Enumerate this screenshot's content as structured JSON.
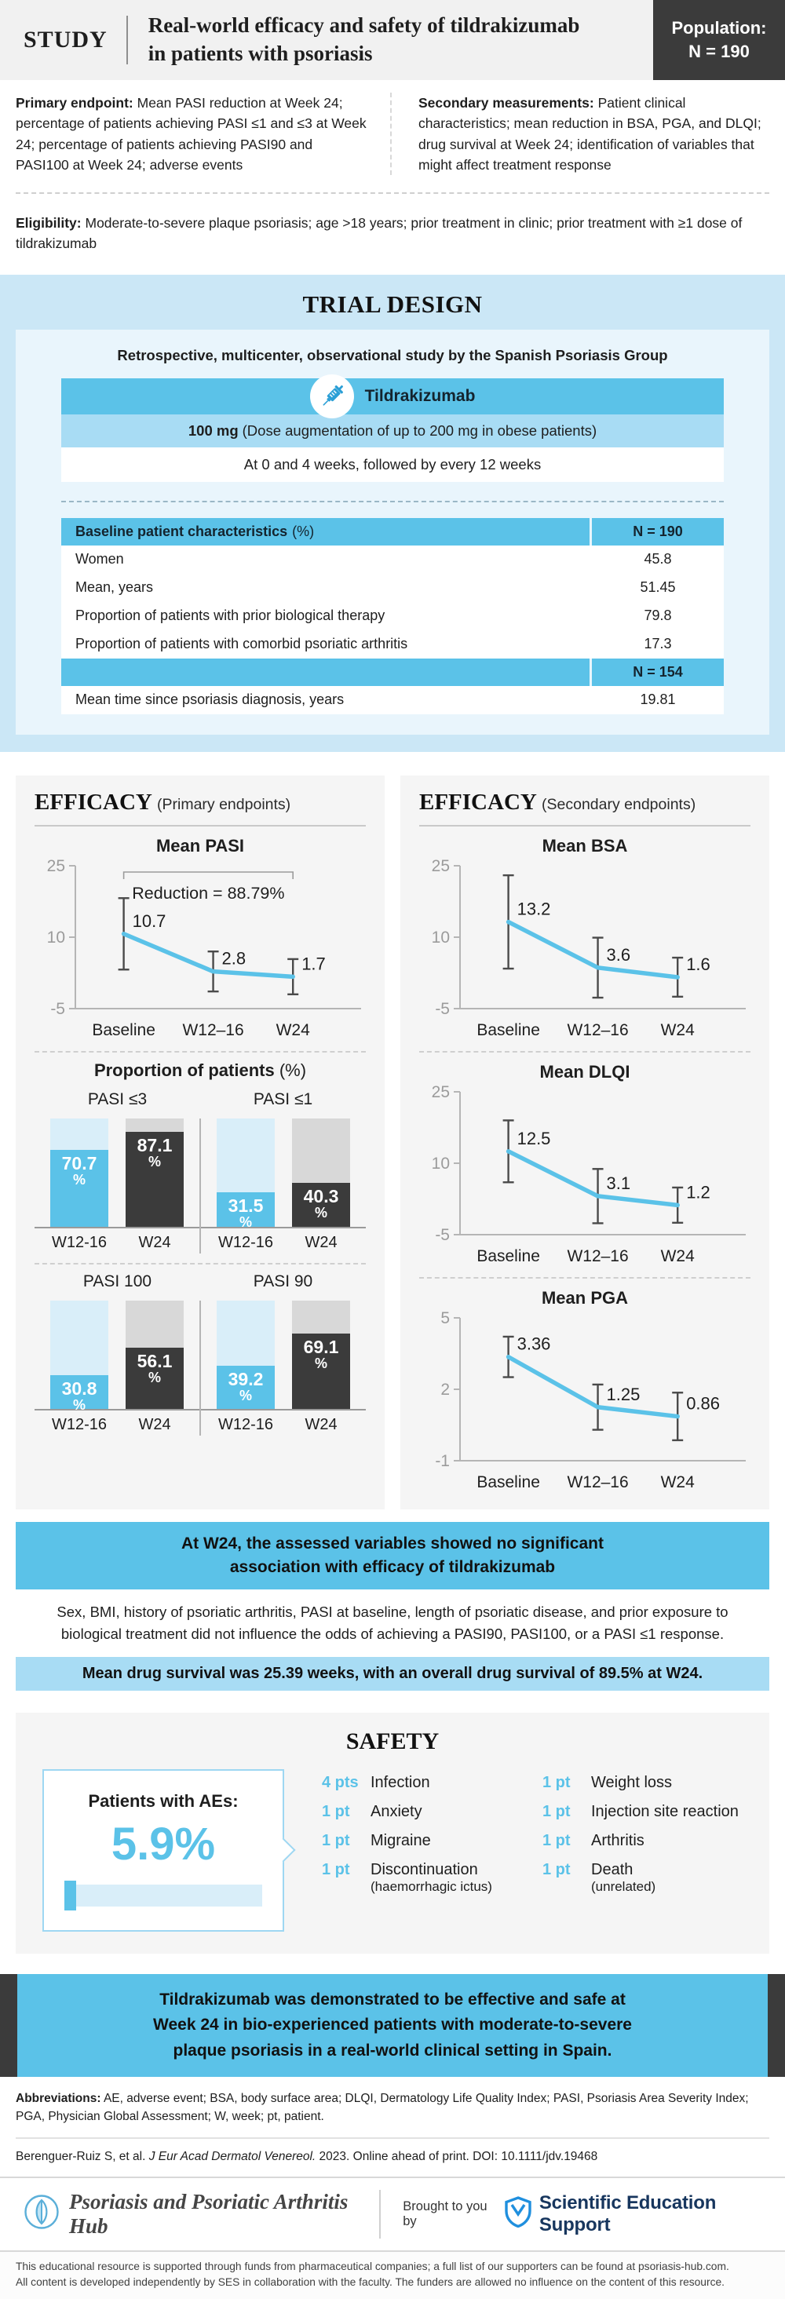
{
  "colors": {
    "accent": "#5BC2E8",
    "light_blue": "#A8DCF4",
    "pale_blue": "#D9EEF9",
    "panel": "#CBE7F6",
    "bar_gray": "#D8D8D8",
    "dark": "#3B3B3B"
  },
  "header": {
    "kicker": "STUDY",
    "title_line1": "Real-world efficacy and safety of tildrakizumab",
    "title_line2": "in patients with psoriasis",
    "population_line1": "Population:",
    "population_line2": "N = 190"
  },
  "endpoints": {
    "primary_label": "Primary endpoint:",
    "primary_text": " Mean PASI reduction at Week 24; percentage of patients achieving PASI ≤1 and ≤3 at Week 24; percentage of patients achieving PASI90 and PASI100 at Week 24; adverse events",
    "secondary_label": "Secondary measurements:",
    "secondary_text": " Patient clinical characteristics; mean reduction in BSA, PGA, and DLQI; drug survival at Week 24; identification of variables that might affect treatment response"
  },
  "eligibility": {
    "label": "Eligibility:",
    "text": " Moderate-to-severe plaque psoriasis; age >18 years; prior treatment in clinic; prior treatment with ≥1 dose of tildrakizumab"
  },
  "trial_design": {
    "title": "TRIAL DESIGN",
    "study_type": "Retrospective, multicenter, observational study by the Spanish Psoriasis Group",
    "drug_name": "Tildrakizumab",
    "dose_bold": "100 mg",
    "dose_rest": " (Dose augmentation of up to 200 mg in obese patients)",
    "schedule": "At 0 and 4 weeks, followed by every 12 weeks",
    "table": {
      "header_label": "Baseline patient characteristics",
      "header_unit": "(%)",
      "header_n": "N = 190",
      "rows": [
        {
          "label": "Women",
          "value": "45.8"
        },
        {
          "label": "Mean, years",
          "value": "51.45"
        },
        {
          "label": "Proportion of patients with prior biological therapy",
          "value": "79.8"
        },
        {
          "label": "Proportion of patients with comorbid psoriatic arthritis",
          "value": "17.3"
        }
      ],
      "subheader_n": "N = 154",
      "rows2": [
        {
          "label": "Mean time since psoriasis diagnosis, years",
          "value": "19.81"
        }
      ]
    }
  },
  "efficacy_primary": {
    "title": "EFFICACY",
    "subtitle": "(Primary endpoints)",
    "proportion_title": "Proportion of patients",
    "proportion_unit": "(%)"
  },
  "efficacy_secondary": {
    "title": "EFFICACY",
    "subtitle": "(Secondary endpoints)"
  },
  "chart_data": [
    {
      "id": "mean-pasi",
      "type": "line",
      "title": "Mean PASI",
      "categories": [
        "Baseline",
        "W12–16",
        "W24"
      ],
      "values": [
        10.7,
        2.8,
        1.7
      ],
      "errors": [
        7.5,
        4.2,
        3.7
      ],
      "ylim": [
        -5,
        25
      ],
      "yticks": [
        25,
        10,
        -5
      ],
      "annotation": "Reduction = 88.79%"
    },
    {
      "id": "mean-bsa",
      "type": "line",
      "title": "Mean BSA",
      "categories": [
        "Baseline",
        "W12–16",
        "W24"
      ],
      "values": [
        13.2,
        3.6,
        1.6
      ],
      "errors": [
        9.8,
        6.3,
        4.1
      ],
      "ylim": [
        -5,
        25
      ],
      "yticks": [
        25,
        10,
        -5
      ]
    },
    {
      "id": "mean-dlqi",
      "type": "line",
      "title": "Mean DLQI",
      "categories": [
        "Baseline",
        "W12–16",
        "W24"
      ],
      "values": [
        12.5,
        3.1,
        1.2
      ],
      "errors": [
        6.5,
        5.7,
        3.7
      ],
      "ylim": [
        -5,
        25
      ],
      "yticks": [
        25,
        10,
        -5
      ]
    },
    {
      "id": "mean-pga",
      "type": "line",
      "title": "Mean PGA",
      "categories": [
        "Baseline",
        "W12–16",
        "W24"
      ],
      "values": [
        3.36,
        1.25,
        0.86
      ],
      "errors": [
        0.85,
        0.95,
        1.0
      ],
      "ylim": [
        -1,
        5
      ],
      "yticks": [
        5,
        2,
        -1
      ]
    },
    {
      "id": "pasi-le3",
      "type": "bar",
      "title": "PASI ≤3",
      "categories": [
        "W12-16",
        "W24"
      ],
      "values": [
        70.7,
        87.1
      ],
      "ylim": [
        0,
        100
      ]
    },
    {
      "id": "pasi-le1",
      "type": "bar",
      "title": "PASI ≤1",
      "categories": [
        "W12-16",
        "W24"
      ],
      "values": [
        31.5,
        40.3
      ],
      "ylim": [
        0,
        100
      ]
    },
    {
      "id": "pasi-100",
      "type": "bar",
      "title": "PASI 100",
      "categories": [
        "W12-16",
        "W24"
      ],
      "values": [
        30.8,
        56.1
      ],
      "ylim": [
        0,
        100
      ]
    },
    {
      "id": "pasi-90",
      "type": "bar",
      "title": "PASI 90",
      "categories": [
        "W12-16",
        "W24"
      ],
      "values": [
        39.2,
        69.1
      ],
      "ylim": [
        0,
        100
      ]
    }
  ],
  "findings": {
    "headline_line1": "At W24, the assessed variables showed no significant",
    "headline_line2": "association with efficacy of tildrakizumab",
    "body": "Sex, BMI, history of psoriatic arthritis, PASI at baseline, length of psoriatic disease, and prior exposure to biological treatment did not influence the odds of achieving a PASI90, PASI100, or a PASI ≤1 response.",
    "drug_survival": "Mean drug survival was 25.39 weeks, with an overall drug survival of 89.5% at W24."
  },
  "safety": {
    "title": "SAFETY",
    "ae_box_label": "Patients with AEs:",
    "ae_rate": "5.9%",
    "ae_rate_value": 5.9,
    "events_col1": [
      {
        "count": "4 pts",
        "label": "Infection",
        "note": ""
      },
      {
        "count": "1 pt",
        "label": "Anxiety",
        "note": ""
      },
      {
        "count": "1 pt",
        "label": "Migraine",
        "note": ""
      },
      {
        "count": "1 pt",
        "label": "Discontinuation",
        "note": "(haemorrhagic ictus)"
      }
    ],
    "events_col2": [
      {
        "count": "1 pt",
        "label": "Weight loss",
        "note": ""
      },
      {
        "count": "1 pt",
        "label": "Injection site reaction",
        "note": ""
      },
      {
        "count": "1 pt",
        "label": "Arthritis",
        "note": ""
      },
      {
        "count": "1 pt",
        "label": "Death",
        "note": "(unrelated)"
      }
    ]
  },
  "conclusion": {
    "line1": "Tildrakizumab was demonstrated to be effective and safe at",
    "line2": "Week 24 in bio-experienced patients with moderate-to-severe",
    "line3": "plaque psoriasis in a real-world clinical setting in Spain."
  },
  "footnotes": {
    "abbreviations_label": "Abbreviations:",
    "abbreviations_text": " AE, adverse event; BSA, body surface area; DLQI, Dermatology Life Quality Index; PASI, Psoriasis Area Severity Index; PGA, Physician Global Assessment; W, week; pt, patient.",
    "reference_pre": "Berenguer-Ruiz S, et al. ",
    "reference_italic": "J Eur Acad Dermatol Venereol.",
    "reference_post": " 2023. Online ahead of print. DOI: 10.1111/jdv.19468"
  },
  "footer": {
    "hub_name": "Psoriasis and Psoriatic Arthritis Hub",
    "brought_by": "Brought to you by",
    "ses_name": "Scientific Education Support",
    "disclaimer_line1": "This educational resource is supported through funds from pharmaceutical companies; a full list of our supporters can be found at psoriasis-hub.com.",
    "disclaimer_line2": "All content is developed independently by SES in collaboration with the faculty. The funders are allowed no influence on the content of this resource."
  }
}
